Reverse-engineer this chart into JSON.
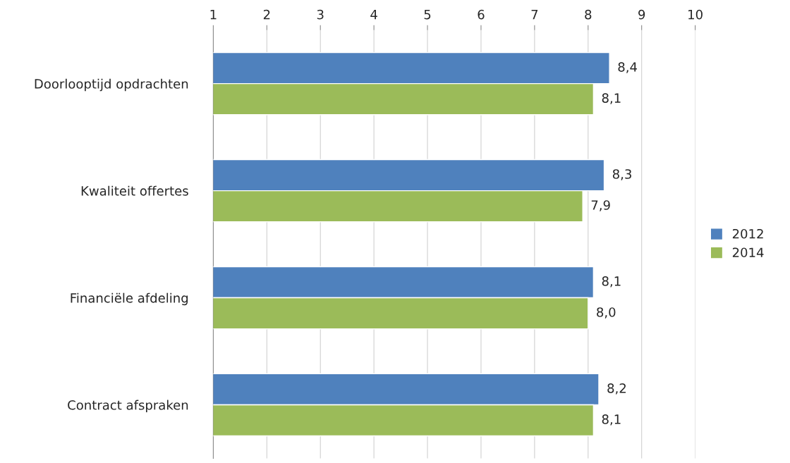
{
  "chart_data": {
    "type": "bar",
    "orientation": "horizontal",
    "categories": [
      "Doorlooptijd opdrachten",
      "Kwaliteit offertes",
      "Financiële afdeling",
      "Contract afspraken"
    ],
    "series": [
      {
        "name": "2012",
        "color": "#4f81bd",
        "values": [
          8.4,
          8.3,
          8.1,
          8.2
        ],
        "value_labels": [
          "8,4",
          "8,3",
          "8,1",
          "8,2"
        ]
      },
      {
        "name": "2014",
        "color": "#9bbb59",
        "values": [
          8.1,
          7.9,
          8.0,
          8.1
        ],
        "value_labels": [
          "8,1",
          "7,9",
          "8,0",
          "8,1"
        ]
      }
    ],
    "xlim": [
      1,
      10
    ],
    "xticks": [
      1,
      2,
      3,
      4,
      5,
      6,
      7,
      8,
      9,
      10
    ],
    "grid": "x",
    "legend": "right"
  }
}
